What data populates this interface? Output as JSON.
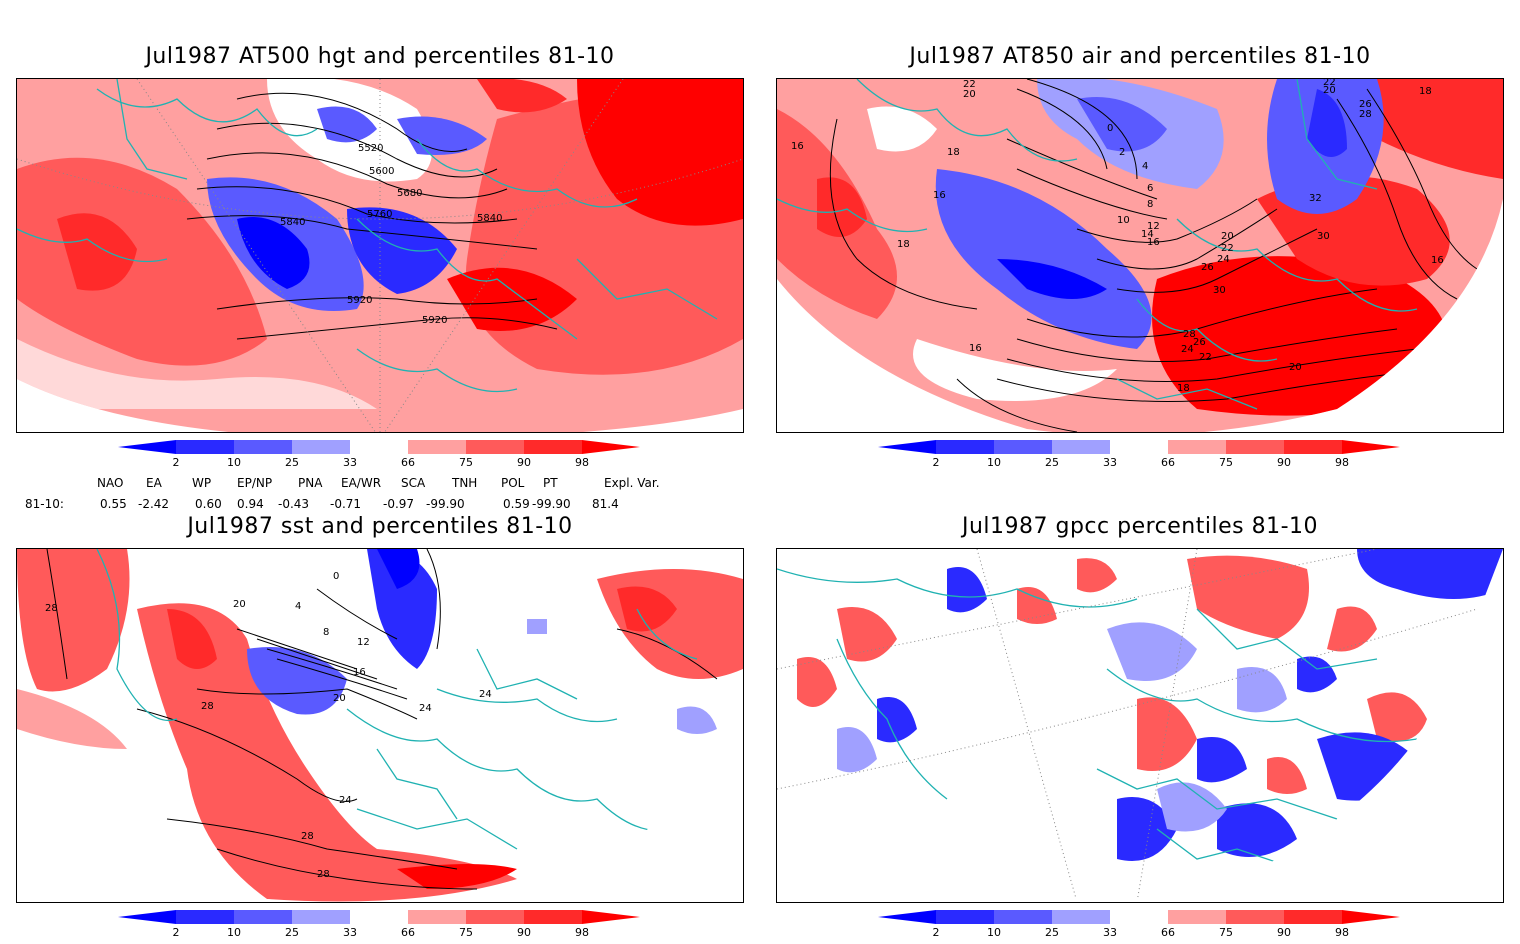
{
  "panels": [
    {
      "id": "p1",
      "title": "Jul1987 AT500 hgt and percentiles 81-10",
      "contours": [
        "5520",
        "5600",
        "5680",
        "5760",
        "5840",
        "5840",
        "5920",
        "5920"
      ]
    },
    {
      "id": "p2",
      "title": "Jul1987 AT850 air and percentiles 81-10",
      "contours": [
        "22",
        "20",
        "18",
        "16",
        "16",
        "18",
        "16",
        "2",
        "4",
        "6",
        "8",
        "10",
        "12",
        "14",
        "16",
        "20",
        "22",
        "24",
        "26",
        "28",
        "26",
        "24",
        "22",
        "18",
        "30",
        "32",
        "30",
        "16",
        "20",
        "18",
        "26",
        "28",
        "22",
        "20",
        "0"
      ]
    },
    {
      "id": "p3",
      "title": "Jul1987 sst and percentiles 81-10",
      "contours": [
        "28",
        "20",
        "4",
        "0",
        "8",
        "12",
        "16",
        "20",
        "24",
        "24",
        "24",
        "28",
        "28",
        "28"
      ]
    },
    {
      "id": "p4",
      "title": "Jul1987 gpcc percentiles 81-10",
      "contours": []
    }
  ],
  "colorbar": {
    "ticks": [
      "2",
      "10",
      "25",
      "33",
      "66",
      "75",
      "90",
      "98"
    ],
    "colors": [
      "#0000ff",
      "#2a2aff",
      "#5a5aff",
      "#a0a0ff",
      "#ffffff",
      "#ffa0a0",
      "#ff5a5a",
      "#ff2a2a",
      "#ff0000"
    ]
  },
  "indices": {
    "headers": [
      "NAO",
      "EA",
      "WP",
      "EP/NP",
      "PNA",
      "EA/WR",
      "SCA",
      "TNH",
      "POL",
      "PT",
      "Expl. Var."
    ],
    "row_label": "81-10:",
    "values": [
      "0.55",
      "-2.42",
      "0.60",
      "0.94",
      "-0.43",
      "-0.71",
      "-0.97",
      "-99.90",
      "0.59",
      "-99.90",
      "81.4"
    ]
  },
  "colors": {
    "map_outline": "#20b2b2",
    "anomaly_low": "#0000ff",
    "anomaly_high": "#ff0000",
    "contour": "#000000"
  }
}
